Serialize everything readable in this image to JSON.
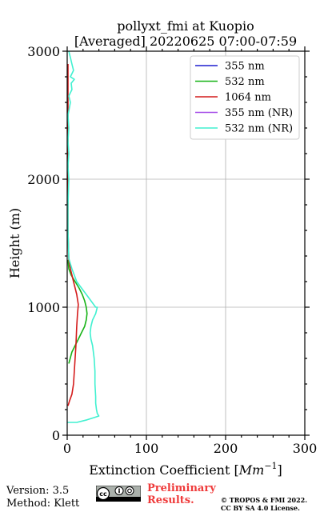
{
  "chart_data": {
    "type": "line",
    "title": "pollyxt_fmi at Kuopio",
    "subtitle": "[Averaged] 20220625 07:00-07:59",
    "xlabel": "Extinction Coefficient [Mm⁻¹]",
    "xlabel_main": "Extinction Coefficient [",
    "xlabel_unit": "Mm",
    "xlabel_exp": "−1",
    "xlabel_end": "]",
    "ylabel": "Height (m)",
    "xlim": [
      0,
      300
    ],
    "ylim": [
      0,
      3000
    ],
    "xticks": [
      0,
      100,
      200,
      300
    ],
    "yticks": [
      0,
      1000,
      2000,
      3000
    ],
    "grid": true,
    "legend_position": "top-right",
    "series": [
      {
        "name": "355 nm",
        "color": "#1f1fcf",
        "x": [],
        "y": []
      },
      {
        "name": "532 nm",
        "color": "#17b317",
        "x": [
          1,
          2,
          5,
          10,
          15,
          19,
          22,
          24,
          25,
          24,
          22,
          18,
          14,
          10,
          6,
          2
        ],
        "y": [
          1370,
          1300,
          1250,
          1200,
          1150,
          1100,
          1050,
          1000,
          950,
          900,
          850,
          800,
          750,
          700,
          650,
          560
        ]
      },
      {
        "name": "1064 nm",
        "color": "#d41c1c",
        "x": [
          1,
          1,
          1,
          1,
          1,
          1,
          2,
          4,
          8,
          12,
          14,
          13,
          12,
          11,
          10,
          9,
          8,
          6,
          3,
          1
        ],
        "y": [
          2900,
          2700,
          2500,
          2200,
          1900,
          1600,
          1370,
          1300,
          1200,
          1100,
          1020,
          950,
          850,
          700,
          600,
          500,
          400,
          320,
          270,
          230
        ]
      },
      {
        "name": "355 nm (NR)",
        "color": "#a64de8",
        "x": [],
        "y": []
      },
      {
        "name": "532 nm (NR)",
        "color": "#40f0d0",
        "x": [
          2,
          4,
          6,
          8,
          4,
          9,
          5,
          6,
          2,
          4,
          1,
          2,
          1,
          2,
          1,
          2,
          1,
          1,
          2,
          6,
          12,
          18,
          24,
          30,
          36,
          38,
          36,
          32,
          30,
          29,
          30,
          32,
          34,
          35,
          35,
          36,
          36,
          37,
          38,
          40,
          35,
          25,
          12,
          0
        ],
        "y": [
          3000,
          2950,
          2900,
          2850,
          2800,
          2780,
          2750,
          2700,
          2650,
          2600,
          2500,
          2400,
          2300,
          2200,
          2100,
          2000,
          1800,
          1600,
          1380,
          1300,
          1200,
          1150,
          1100,
          1050,
          1000,
          1000,
          950,
          900,
          850,
          800,
          750,
          700,
          600,
          500,
          400,
          300,
          250,
          200,
          170,
          150,
          140,
          120,
          100,
          100
        ]
      }
    ]
  },
  "footer": {
    "version": "Version: 3.5",
    "method": "Method: Klett",
    "preliminary_line1": "Preliminary",
    "preliminary_line2": "Results.",
    "copyright_line1": "© TROPOS & FMI 2022.",
    "copyright_line2": "CC BY SA 4.0 License."
  }
}
